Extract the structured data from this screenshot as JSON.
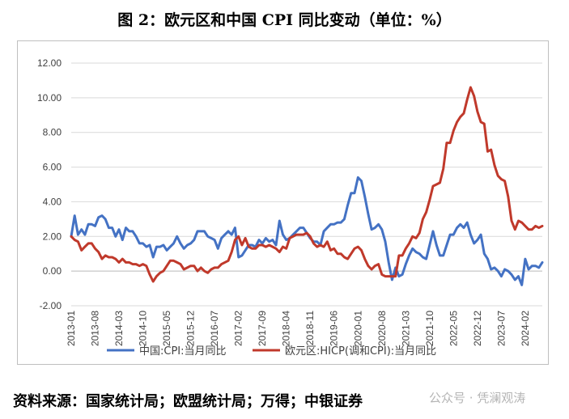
{
  "title": "图 2：欧元区和中国 CPI 同比变动（单位：%）",
  "source": "资料来源：国家统计局；欧盟统计局；万得；中银证券",
  "watermark": "公众号 · 凭澜观涛",
  "chart_data": {
    "type": "line",
    "ylim": [
      -2,
      12
    ],
    "y_ticks": [
      "-2.00",
      "0.00",
      "2.00",
      "4.00",
      "6.00",
      "8.00",
      "10.00",
      "12.00"
    ],
    "x_ticks": [
      "2013-01",
      "2013-08",
      "2014-03",
      "2014-10",
      "2015-05",
      "2015-12",
      "2016-07",
      "2017-02",
      "2017-09",
      "2018-04",
      "2018-11",
      "2019-06",
      "2020-01",
      "2020-08",
      "2021-03",
      "2021-10",
      "2022-05",
      "2022-12",
      "2023-07",
      "2024-02"
    ],
    "legend_position": "bottom",
    "grid": true,
    "series": [
      {
        "name": "中国:CPI:当月同比",
        "color": "#4472c4",
        "values": [
          2.0,
          3.2,
          2.1,
          2.4,
          2.1,
          2.7,
          2.7,
          2.6,
          3.1,
          3.2,
          3.0,
          2.5,
          2.5,
          2.0,
          2.4,
          1.8,
          2.5,
          2.3,
          2.3,
          2.0,
          1.6,
          1.6,
          1.4,
          1.5,
          0.8,
          1.4,
          1.4,
          1.5,
          1.2,
          1.4,
          1.6,
          2.0,
          1.6,
          1.3,
          1.5,
          1.6,
          1.8,
          2.3,
          2.3,
          2.3,
          2.0,
          1.9,
          1.8,
          1.3,
          1.9,
          2.1,
          2.3,
          2.1,
          2.5,
          0.8,
          0.9,
          1.2,
          1.5,
          1.5,
          1.4,
          1.8,
          1.6,
          1.9,
          1.7,
          1.8,
          1.5,
          2.9,
          2.1,
          1.8,
          1.9,
          2.1,
          2.3,
          2.5,
          2.5,
          2.2,
          1.9,
          1.7,
          1.7,
          1.5,
          2.3,
          2.5,
          2.7,
          2.7,
          2.8,
          2.8,
          3.0,
          3.8,
          4.5,
          4.5,
          5.4,
          5.2,
          4.3,
          3.3,
          2.4,
          2.5,
          2.7,
          2.4,
          1.7,
          0.5,
          -0.5,
          0.2,
          -0.3,
          -0.2,
          0.4,
          0.9,
          1.3,
          1.1,
          1.0,
          0.8,
          0.7,
          1.5,
          2.3,
          1.5,
          0.9,
          0.9,
          1.5,
          2.1,
          2.1,
          2.5,
          2.7,
          2.5,
          2.8,
          2.1,
          1.6,
          1.8,
          2.1,
          1.0,
          0.7,
          0.1,
          0.2,
          0.0,
          -0.3,
          0.1,
          0.0,
          -0.2,
          -0.5,
          -0.3,
          -0.8,
          0.7,
          0.1,
          0.3,
          0.3,
          0.2,
          0.5
        ]
      },
      {
        "name": "欧元区:HICP(调和CPI):当月同比",
        "color": "#c0392b",
        "values": [
          2.0,
          1.8,
          1.7,
          1.2,
          1.4,
          1.6,
          1.6,
          1.3,
          1.1,
          0.7,
          0.9,
          0.8,
          0.8,
          0.7,
          0.5,
          0.7,
          0.5,
          0.5,
          0.4,
          0.4,
          0.3,
          0.4,
          0.3,
          -0.2,
          -0.6,
          -0.3,
          -0.1,
          0.0,
          0.3,
          0.6,
          0.6,
          0.5,
          0.4,
          0.1,
          0.2,
          0.3,
          0.3,
          0.0,
          0.2,
          0.0,
          -0.1,
          0.1,
          0.2,
          0.2,
          0.4,
          0.5,
          0.6,
          1.1,
          1.8,
          2.0,
          1.5,
          1.9,
          1.4,
          1.3,
          1.3,
          1.5,
          1.5,
          1.4,
          1.5,
          1.4,
          1.3,
          1.1,
          1.4,
          1.3,
          1.9,
          2.0,
          2.1,
          2.1,
          2.1,
          2.2,
          2.0,
          1.6,
          1.4,
          1.5,
          1.4,
          1.7,
          1.2,
          1.3,
          1.0,
          1.0,
          0.8,
          0.7,
          1.0,
          1.3,
          1.4,
          1.2,
          0.7,
          0.3,
          0.1,
          0.3,
          0.4,
          -0.2,
          -0.3,
          -0.3,
          -0.3,
          -0.3,
          0.9,
          0.9,
          1.3,
          1.6,
          2.0,
          1.9,
          2.2,
          3.0,
          3.4,
          4.1,
          4.9,
          5.0,
          5.1,
          5.9,
          7.4,
          7.4,
          8.1,
          8.6,
          8.9,
          9.1,
          9.9,
          10.6,
          10.1,
          9.2,
          8.6,
          8.5,
          6.9,
          7.0,
          6.1,
          5.5,
          5.3,
          5.2,
          4.3,
          2.9,
          2.4,
          2.9,
          2.8,
          2.6,
          2.4,
          2.4,
          2.6,
          2.5,
          2.6
        ]
      }
    ]
  }
}
